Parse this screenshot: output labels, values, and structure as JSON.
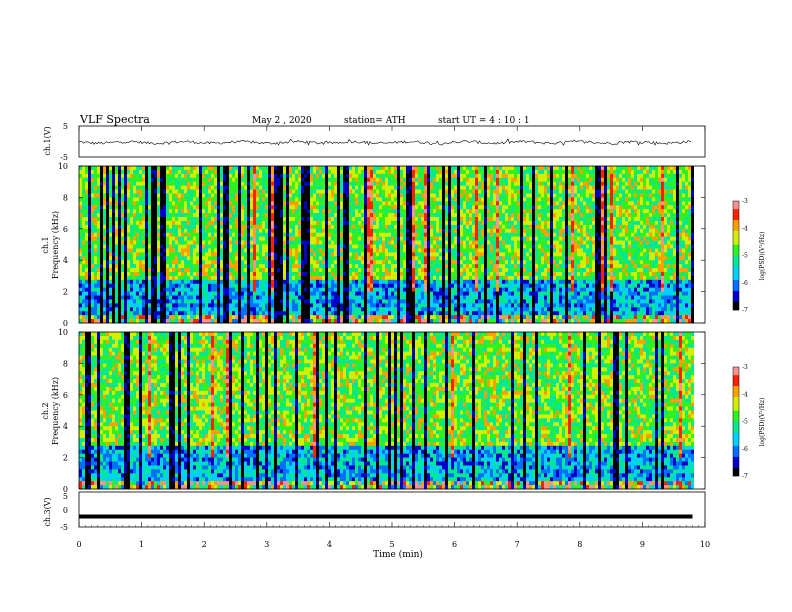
{
  "header": {
    "title": "VLF  Spectra",
    "date": "May 2  , 2020",
    "station": "station= ATH",
    "start_ut": "start  UT  =   4  : 10 : 1"
  },
  "chart_data": [
    {
      "type": "line",
      "panel": "ch1-waveform",
      "ylabel": "ch.1(V)",
      "ylim": [
        -5,
        5
      ],
      "yticks": [
        "5",
        "-5"
      ],
      "xlim": [
        0,
        10
      ],
      "series": [
        {
          "values_range": [
            -1.2,
            1.0
          ],
          "baseline": -0.3
        }
      ]
    },
    {
      "type": "heatmap",
      "panel": "ch1-spectrogram",
      "ylabel": "ch.1\nFrequency  (kHz)",
      "ylabel_lines": [
        "ch.1",
        "Frequency  (kHz)"
      ],
      "ylim": [
        0,
        10
      ],
      "yticks": [
        "0",
        "2",
        "4",
        "6",
        "8",
        "10"
      ],
      "xlim": [
        0,
        10
      ],
      "data_end_min": 9.8,
      "colorbar": {
        "label": "log(PSD)(V²/Hz)",
        "range": [
          -7,
          -3
        ],
        "ticks": [
          "-3",
          "-4",
          "-5",
          "-6",
          "-7"
        ]
      }
    },
    {
      "type": "heatmap",
      "panel": "ch2-spectrogram",
      "ylabel": "ch.2\nFrequency  (kHz)",
      "ylabel_lines": [
        "ch.2",
        "Frequency  (kHz)"
      ],
      "ylim": [
        0,
        10
      ],
      "yticks": [
        "0",
        "2",
        "4",
        "6",
        "8",
        "10"
      ],
      "xlim": [
        0,
        10
      ],
      "data_end_min": 9.8,
      "colorbar": {
        "label": "log(PSD)(V²/Hz)",
        "range": [
          -7,
          -3
        ],
        "ticks": [
          "-3",
          "-4",
          "-5",
          "-6",
          "-7"
        ]
      }
    },
    {
      "type": "line",
      "panel": "ch3-waveform",
      "ylabel": "ch.3(V)",
      "ylim": [
        -5,
        5
      ],
      "yticks": [
        "5",
        "0",
        "-5"
      ],
      "xlim": [
        0,
        10
      ],
      "xlabel": "Time  (min)",
      "xticks": [
        "0",
        "1",
        "2",
        "3",
        "4",
        "5",
        "6",
        "7",
        "8",
        "9",
        "10"
      ],
      "series": [
        {
          "constant": -2
        }
      ]
    }
  ],
  "colors": {
    "axis": "#000000",
    "colormap": [
      "#000000",
      "#0000c8",
      "#0070ff",
      "#00d0ff",
      "#00e890",
      "#30f020",
      "#d0f000",
      "#ffa000",
      "#ff2000",
      "#ff9090",
      "#ffffff"
    ]
  }
}
